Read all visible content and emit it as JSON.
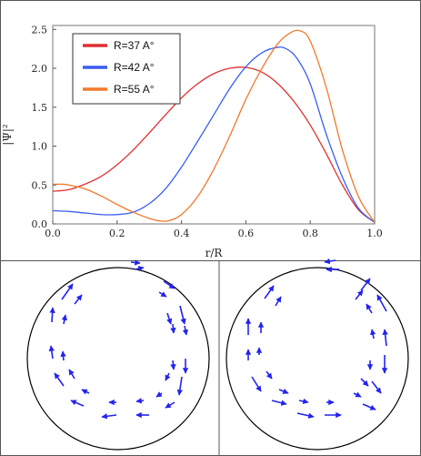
{
  "chart_data": [
    {
      "type": "line",
      "xlabel": "r/R",
      "ylabel": "|Ψ|²",
      "xlim": [
        0,
        1
      ],
      "ylim": [
        0,
        2.5
      ],
      "xticks": [
        0.0,
        0.2,
        0.4,
        0.6,
        0.8,
        1.0
      ],
      "xtick_labels": [
        "0.0",
        "0.2",
        "0.4",
        "0.6",
        "0.8",
        "1.0"
      ],
      "yticks": [
        0.0,
        0.5,
        1.0,
        1.5,
        2.0,
        2.5
      ],
      "ytick_labels": [
        "0.0",
        "0.5",
        "1.0",
        "1.5",
        "2.0",
        "2.5"
      ],
      "legend_position": "top-left",
      "series": [
        {
          "name": "R=37 A°",
          "color": "#e03030",
          "x": [
            0.0,
            0.05,
            0.1,
            0.15,
            0.2,
            0.25,
            0.3,
            0.35,
            0.4,
            0.45,
            0.5,
            0.55,
            0.6,
            0.65,
            0.7,
            0.75,
            0.8,
            0.85,
            0.9,
            0.95,
            1.0
          ],
          "y": [
            0.42,
            0.44,
            0.51,
            0.61,
            0.76,
            0.95,
            1.17,
            1.4,
            1.62,
            1.8,
            1.93,
            2.0,
            2.01,
            1.95,
            1.8,
            1.57,
            1.27,
            0.9,
            0.5,
            0.18,
            0.02
          ]
        },
        {
          "name": "R=42 A°",
          "color": "#3a5ef0",
          "x": [
            0.0,
            0.05,
            0.1,
            0.15,
            0.2,
            0.25,
            0.3,
            0.35,
            0.4,
            0.45,
            0.5,
            0.55,
            0.6,
            0.65,
            0.7,
            0.73,
            0.76,
            0.8,
            0.85,
            0.9,
            0.95,
            1.0
          ],
          "y": [
            0.17,
            0.16,
            0.14,
            0.12,
            0.12,
            0.15,
            0.26,
            0.45,
            0.73,
            1.06,
            1.4,
            1.74,
            2.02,
            2.2,
            2.27,
            2.24,
            2.12,
            1.8,
            1.15,
            0.6,
            0.2,
            0.02
          ]
        },
        {
          "name": "R=55 A°",
          "color": "#f07a2a",
          "x": [
            0.0,
            0.03,
            0.05,
            0.1,
            0.15,
            0.2,
            0.25,
            0.3,
            0.33,
            0.36,
            0.4,
            0.45,
            0.5,
            0.55,
            0.6,
            0.65,
            0.7,
            0.74,
            0.77,
            0.8,
            0.85,
            0.9,
            0.95,
            1.0
          ],
          "y": [
            0.51,
            0.51,
            0.5,
            0.45,
            0.36,
            0.25,
            0.15,
            0.07,
            0.04,
            0.04,
            0.12,
            0.35,
            0.7,
            1.13,
            1.6,
            2.0,
            2.32,
            2.46,
            2.48,
            2.35,
            1.75,
            0.95,
            0.35,
            0.02
          ]
        }
      ]
    },
    {
      "type": "vector-field",
      "panel": "left",
      "arrow_color": "#2323ee",
      "arrows": [
        [
          0.18,
          0.02,
          0.28,
          0.0
        ],
        [
          0.14,
          -0.06,
          0.24,
          -0.05
        ],
        [
          0.5,
          0.15,
          0.62,
          0.23
        ],
        [
          0.45,
          0.27,
          0.53,
          0.32
        ],
        [
          0.68,
          0.42,
          0.73,
          0.62
        ],
        [
          0.54,
          0.5,
          0.58,
          0.62
        ],
        [
          0.73,
          0.64,
          0.75,
          0.74
        ],
        [
          0.6,
          0.62,
          0.61,
          0.72
        ],
        [
          0.74,
          1.0,
          0.74,
          1.16
        ],
        [
          0.6,
          1.02,
          0.61,
          1.12
        ],
        [
          0.7,
          1.2,
          0.67,
          1.4
        ],
        [
          0.56,
          1.16,
          0.52,
          1.24
        ],
        [
          0.62,
          1.48,
          0.52,
          1.54
        ],
        [
          0.48,
          1.38,
          0.42,
          1.42
        ],
        [
          0.34,
          1.62,
          0.2,
          1.62
        ],
        [
          0.28,
          1.46,
          0.2,
          1.47
        ],
        [
          -0.02,
          1.62,
          -0.18,
          1.64
        ],
        [
          -0.02,
          1.48,
          -0.1,
          1.48
        ],
        [
          -0.38,
          1.52,
          -0.52,
          1.46
        ],
        [
          -0.32,
          1.38,
          -0.4,
          1.34
        ],
        [
          -0.6,
          1.3,
          -0.7,
          1.16
        ],
        [
          -0.48,
          1.22,
          -0.54,
          1.12
        ],
        [
          -0.72,
          1.0,
          -0.74,
          0.86
        ],
        [
          -0.6,
          1.02,
          -0.61,
          0.92
        ],
        [
          -0.73,
          0.6,
          -0.72,
          0.44
        ],
        [
          -0.6,
          0.62,
          -0.58,
          0.52
        ],
        [
          -0.62,
          0.35,
          -0.5,
          0.18
        ],
        [
          -0.48,
          0.4,
          -0.4,
          0.3
        ]
      ]
    },
    {
      "type": "vector-field",
      "panel": "right",
      "arrow_color": "#2323ee",
      "arrows": [
        [
          0.24,
          0.02,
          0.1,
          0.02
        ],
        [
          0.2,
          -0.08,
          0.08,
          -0.06
        ],
        [
          0.48,
          0.25,
          0.58,
          0.12
        ],
        [
          0.42,
          0.35,
          0.5,
          0.25
        ],
        [
          0.76,
          0.48,
          0.66,
          0.3
        ],
        [
          0.6,
          0.5,
          0.54,
          0.4
        ],
        [
          0.76,
          0.86,
          0.74,
          0.68
        ],
        [
          0.62,
          0.78,
          0.6,
          0.68
        ],
        [
          0.74,
          0.96,
          0.74,
          1.16
        ],
        [
          0.58,
          1.02,
          0.58,
          1.12
        ],
        [
          0.6,
          1.25,
          0.7,
          1.38
        ],
        [
          0.48,
          1.22,
          0.56,
          1.3
        ],
        [
          0.5,
          1.5,
          0.64,
          1.56
        ],
        [
          0.4,
          1.38,
          0.48,
          1.42
        ],
        [
          0.08,
          1.62,
          0.26,
          1.62
        ],
        [
          0.1,
          1.48,
          0.18,
          1.48
        ],
        [
          -0.22,
          1.6,
          -0.04,
          1.64
        ],
        [
          -0.2,
          1.46,
          -0.1,
          1.48
        ],
        [
          -0.5,
          1.46,
          -0.34,
          1.5
        ],
        [
          -0.42,
          1.34,
          -0.32,
          1.38
        ],
        [
          -0.72,
          1.2,
          -0.62,
          1.36
        ],
        [
          -0.56,
          1.14,
          -0.5,
          1.22
        ],
        [
          -0.76,
          1.02,
          -0.76,
          0.9
        ],
        [
          -0.64,
          0.96,
          -0.64,
          0.88
        ],
        [
          -0.76,
          0.74,
          -0.76,
          0.56
        ],
        [
          -0.62,
          0.72,
          -0.62,
          0.6
        ],
        [
          -0.58,
          0.34,
          -0.48,
          0.2
        ],
        [
          -0.46,
          0.42,
          -0.4,
          0.32
        ]
      ]
    }
  ]
}
